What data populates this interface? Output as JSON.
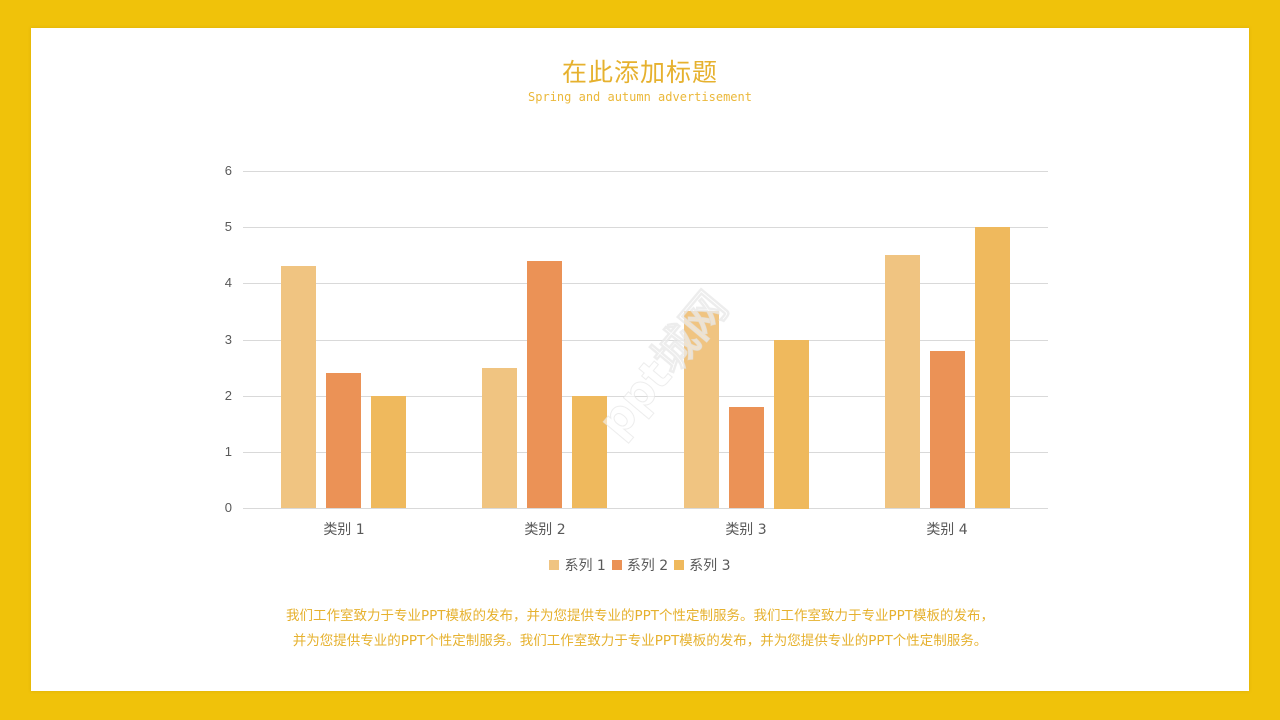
{
  "slide": {
    "title": "在此添加标题",
    "subtitle": "Spring and autumn advertisement",
    "body_lines": [
      "我们工作室致力于专业PPT模板的发布，并为您提供专业的PPT个性定制服务。我们工作室致力于专业PPT模板的发布，",
      "并为您提供专业的PPT个性定制服务。我们工作室致力于专业PPT模板的发布，并为您提供专业的PPT个性定制服务。"
    ],
    "watermark": "ppt城网"
  },
  "colors": {
    "frame": "#F0C20A",
    "title": "#E6B12E",
    "series_1": "#F0C481",
    "series_2": "#EB9256",
    "series_3": "#EFB95D",
    "gridline": "#D9D9D9",
    "axis_text": "#595959"
  },
  "chart_data": {
    "type": "bar",
    "title": "",
    "xlabel": "",
    "ylabel": "",
    "categories": [
      "类别 1",
      "类别 2",
      "类别 3",
      "类别 4"
    ],
    "series": [
      {
        "name": "系列 1",
        "values": [
          4.3,
          2.5,
          3.5,
          4.5
        ],
        "color": "#F0C481"
      },
      {
        "name": "系列 2",
        "values": [
          2.4,
          4.4,
          1.8,
          2.8
        ],
        "color": "#EB9256"
      },
      {
        "name": "系列 3",
        "values": [
          2.0,
          2.0,
          3.0,
          5.0
        ],
        "color": "#EFB95D"
      }
    ],
    "ylim": [
      0,
      6
    ],
    "yticks": [
      "0",
      "1",
      "2",
      "3",
      "4",
      "5",
      "6"
    ],
    "grid": true,
    "legend_position": "bottom"
  }
}
